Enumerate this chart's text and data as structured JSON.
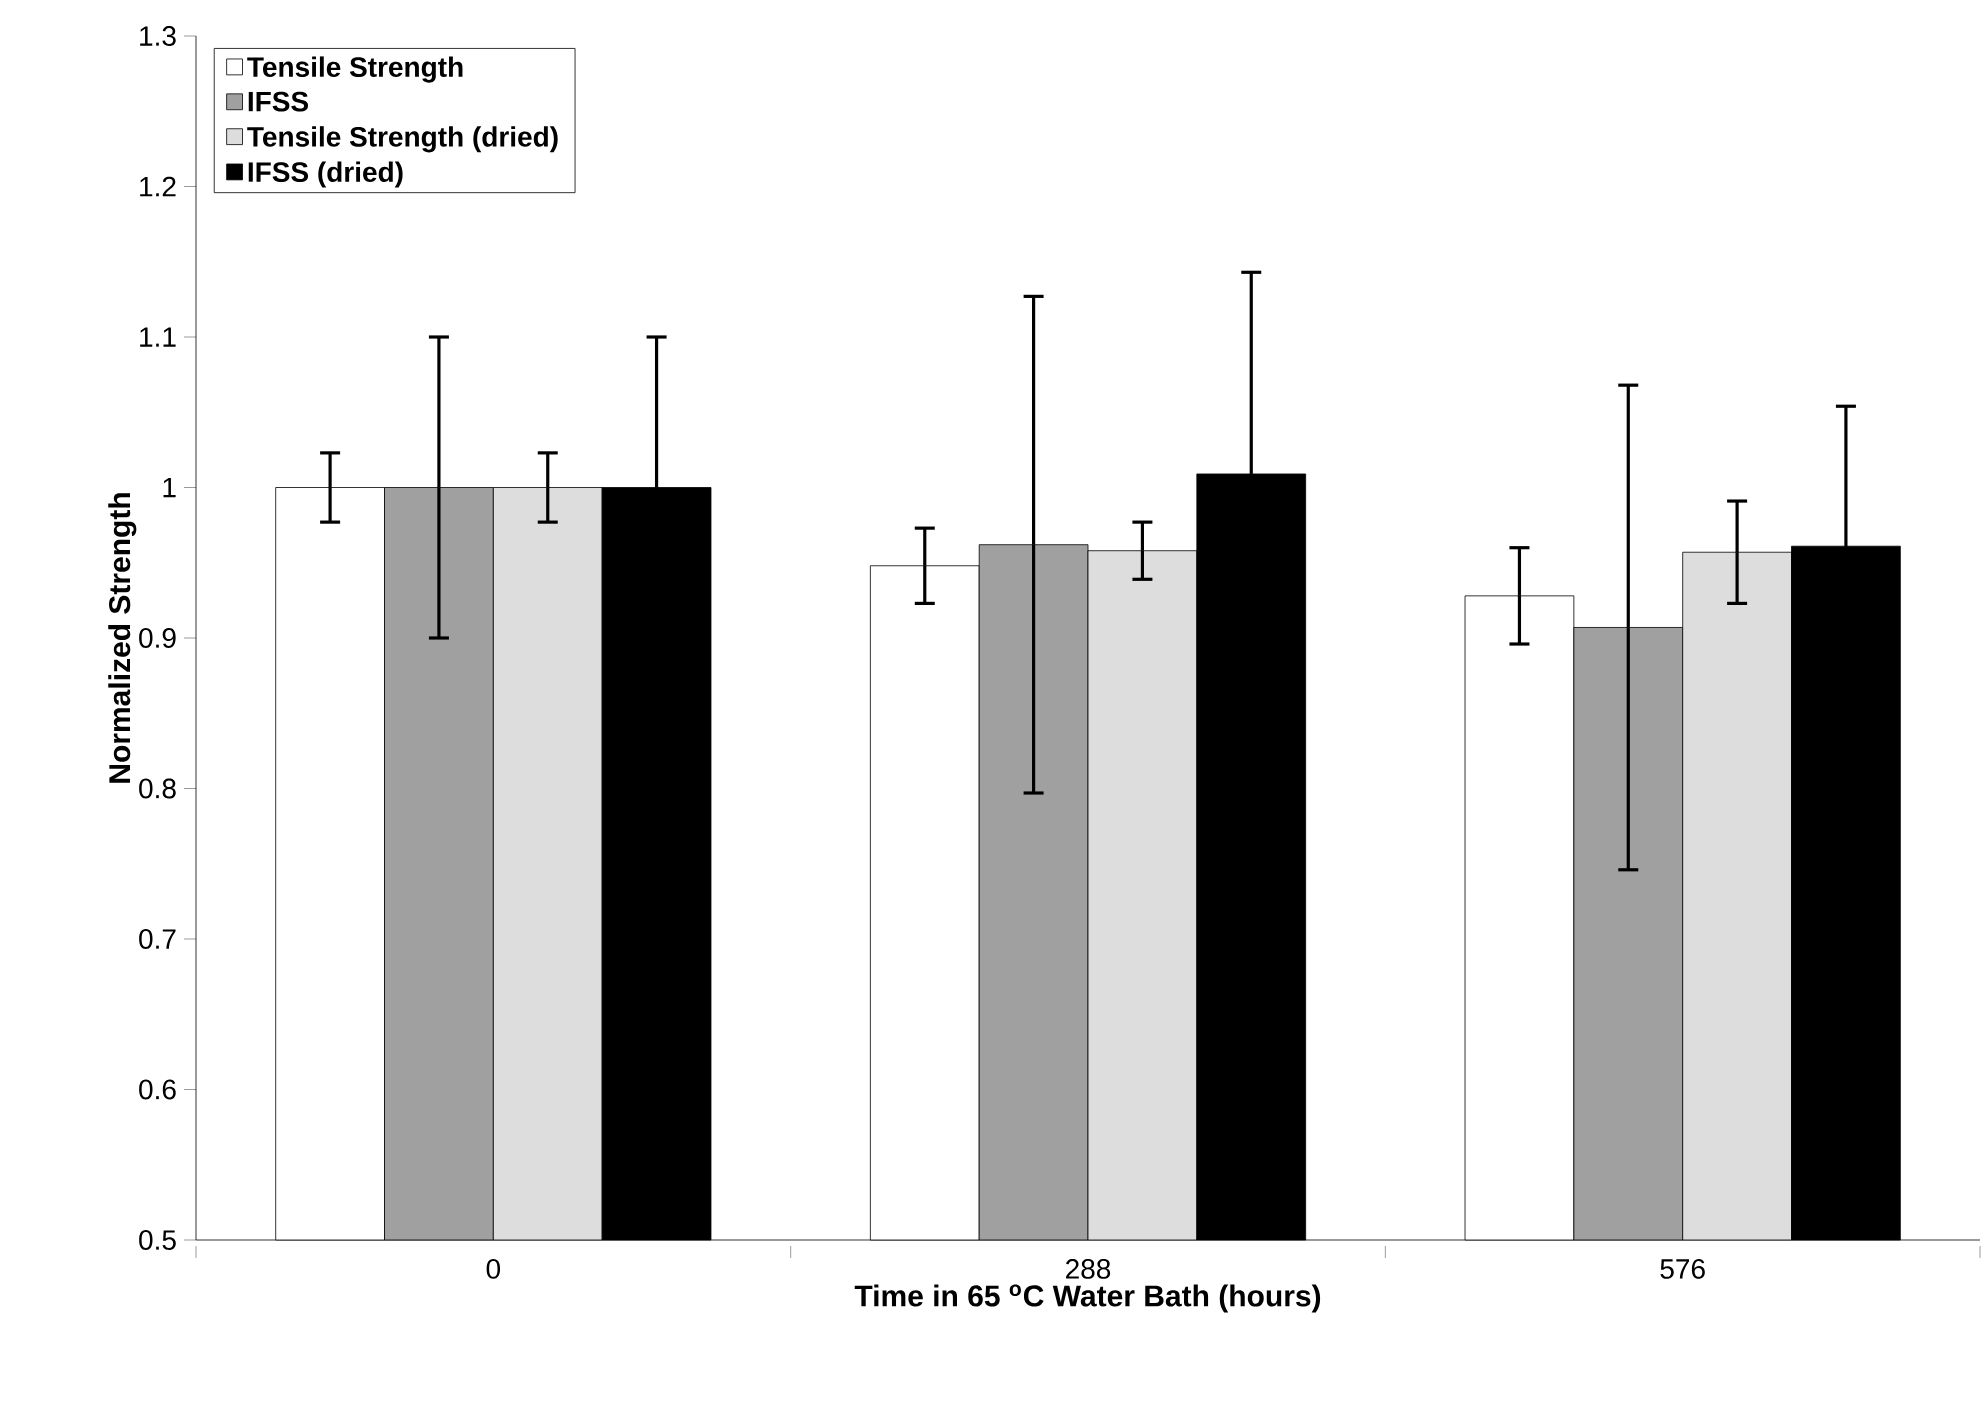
{
  "chart_data": {
    "type": "bar",
    "xlabel": "Time in 65 $^{o}$C Water Bath (hours)",
    "ylabel": "Normalized Strength",
    "categories": [
      "0",
      "288",
      "576"
    ],
    "series": [
      {
        "name": "Tensile Strength",
        "color": "#ffffff",
        "values": [
          1.0,
          0.948,
          0.928
        ],
        "errors": [
          0.023,
          0.025,
          0.032
        ]
      },
      {
        "name": "IFSS",
        "color": "#a0a0a0",
        "values": [
          1.0,
          0.962,
          0.907
        ],
        "errors": [
          0.1,
          0.165,
          0.161
        ]
      },
      {
        "name": "Tensile Strength (dried)",
        "color": "#dddddd",
        "values": [
          1.0,
          0.958,
          0.957
        ],
        "errors": [
          0.023,
          0.019,
          0.034
        ]
      },
      {
        "name": "IFSS (dried)",
        "color": "#000000",
        "values": [
          1.0,
          1.009,
          0.961
        ],
        "errors": [
          0.1,
          0.134,
          0.093
        ]
      }
    ],
    "ylim": [
      0.5,
      1.3
    ],
    "yticks": [
      0.5,
      0.6,
      0.7,
      0.8,
      0.9,
      1,
      1.1,
      1.2,
      1.3
    ],
    "grid": false,
    "legend": "top left"
  }
}
